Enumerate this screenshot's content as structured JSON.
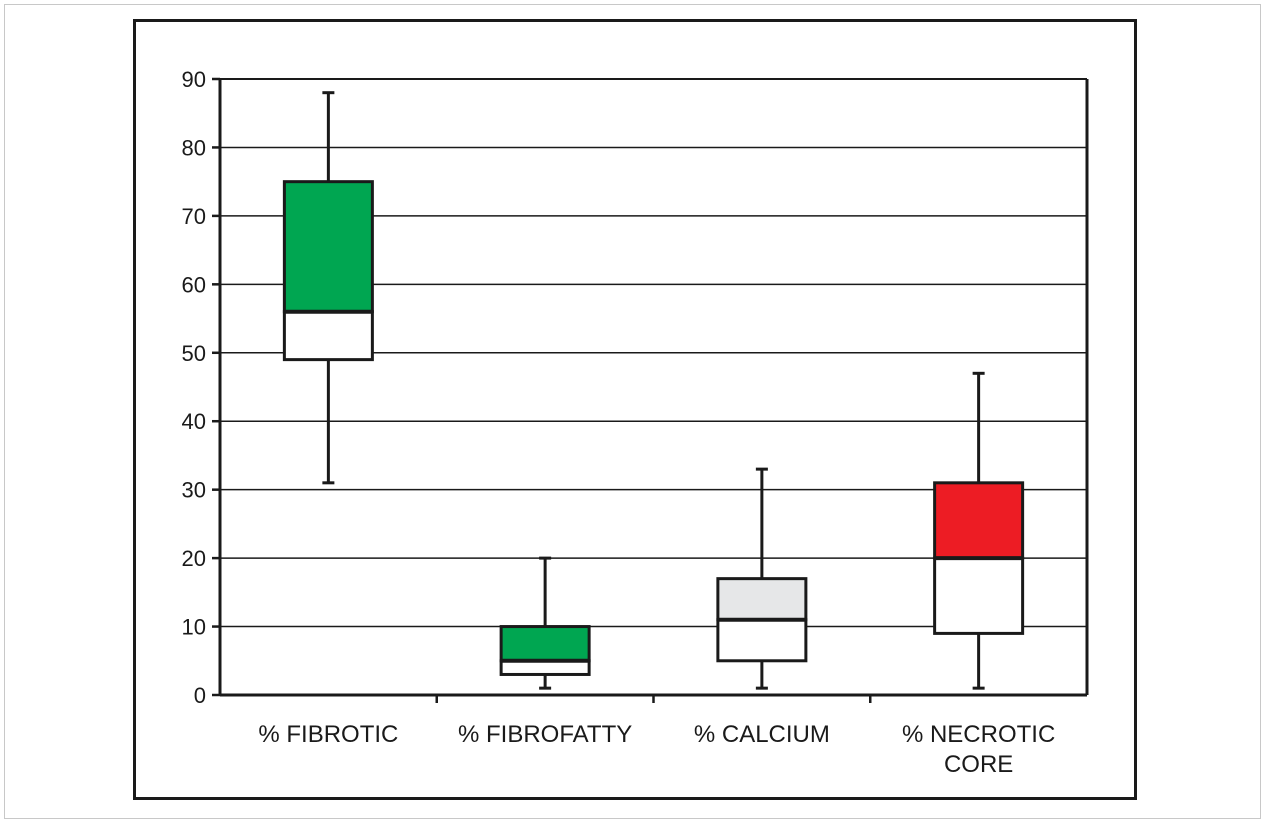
{
  "chart_data": {
    "type": "boxplot",
    "title": "",
    "xlabel": "",
    "ylabel": "",
    "ylim": [
      0,
      90
    ],
    "yticks": [
      0,
      10,
      20,
      30,
      40,
      50,
      60,
      70,
      80,
      90
    ],
    "grid": true,
    "categories": [
      {
        "label_lines": [
          "% FIBROTIC"
        ],
        "min": 31,
        "q1": 49,
        "median": 56,
        "q3": 75,
        "max": 88,
        "color": "#00a651"
      },
      {
        "label_lines": [
          "% FIBROFATTY"
        ],
        "min": 1,
        "q1": 3,
        "median": 5,
        "q3": 10,
        "max": 20,
        "color": "#00a651"
      },
      {
        "label_lines": [
          "% CALCIUM"
        ],
        "min": 1,
        "q1": 5,
        "median": 11,
        "q3": 17,
        "max": 33,
        "color": "#e6e7e8"
      },
      {
        "label_lines": [
          "% NECROTIC",
          "CORE"
        ],
        "min": 1,
        "q1": 9,
        "median": 20,
        "q3": 31,
        "max": 47,
        "color": "#ed1c24"
      }
    ]
  }
}
